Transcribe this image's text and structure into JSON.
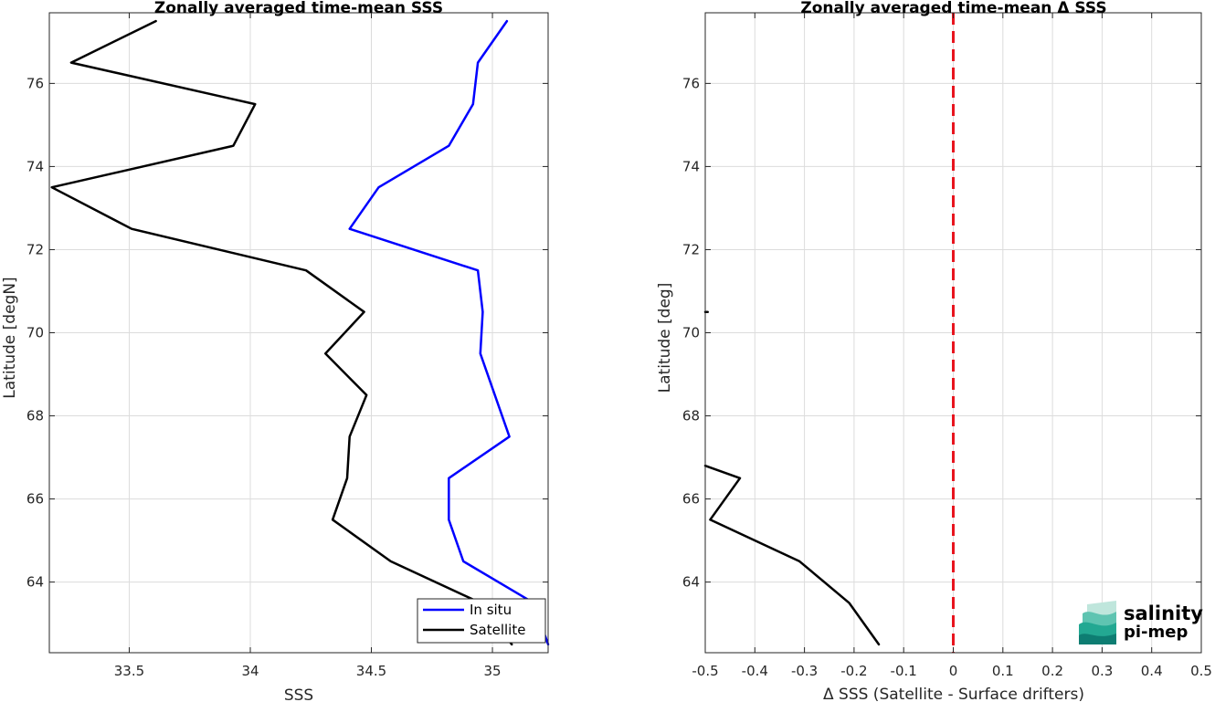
{
  "chart_data": [
    {
      "type": "line",
      "title": "Zonally averaged time-mean SSS",
      "xlabel": "SSS",
      "ylabel": "Latitude [degN]",
      "xlim": [
        33.17,
        35.23
      ],
      "ylim": [
        62.3,
        77.7
      ],
      "xticks": [
        33.5,
        34,
        34.5,
        35
      ],
      "xtick_labels": [
        "33.5",
        "34",
        "34.5",
        "35"
      ],
      "yticks": [
        64,
        66,
        68,
        70,
        72,
        74,
        76
      ],
      "ytick_labels": [
        "64",
        "66",
        "68",
        "70",
        "72",
        "74",
        "76"
      ],
      "grid": true,
      "legend_position": "bottom-right",
      "series": [
        {
          "name": "In situ",
          "color": "#0000ff",
          "x": [
            35.06,
            34.94,
            34.92,
            34.82,
            34.53,
            34.41,
            34.94,
            34.96,
            34.95,
            35.01,
            35.07,
            34.82,
            34.82,
            34.88,
            35.17,
            35.23
          ],
          "y": [
            77.5,
            76.5,
            75.5,
            74.5,
            73.5,
            72.5,
            71.5,
            70.5,
            69.5,
            68.5,
            67.5,
            66.5,
            65.5,
            64.5,
            63.5,
            62.5
          ]
        },
        {
          "name": "Satellite",
          "color": "#000000",
          "x": [
            33.61,
            33.26,
            34.02,
            33.93,
            33.18,
            33.51,
            34.23,
            34.47,
            34.31,
            34.48,
            34.41,
            34.4,
            34.34,
            34.58,
            34.95,
            35.08
          ],
          "y": [
            77.5,
            76.5,
            75.5,
            74.5,
            73.5,
            72.5,
            71.5,
            70.5,
            69.5,
            68.5,
            67.5,
            66.5,
            65.5,
            64.5,
            63.5,
            62.5
          ]
        }
      ]
    },
    {
      "type": "line",
      "title": "Zonally averaged time-mean Δ SSS",
      "xlabel": "Δ SSS (Satellite - Surface drifters)",
      "ylabel": "Latitude [deg]",
      "xlim": [
        -0.5,
        0.5
      ],
      "ylim": [
        62.3,
        77.7
      ],
      "xticks": [
        -0.5,
        -0.4,
        -0.3,
        -0.2,
        -0.1,
        0,
        0.1,
        0.2,
        0.3,
        0.4,
        0.5
      ],
      "xtick_labels": [
        "-0.5",
        "-0.4",
        "-0.3",
        "-0.2",
        "-0.1",
        "0",
        "0.1",
        "0.2",
        "0.3",
        "0.4",
        "0.5"
      ],
      "yticks": [
        64,
        66,
        68,
        70,
        72,
        74,
        76
      ],
      "ytick_labels": [
        "64",
        "66",
        "68",
        "70",
        "72",
        "74",
        "76"
      ],
      "grid": true,
      "reference_line": {
        "x": 0,
        "color": "#e8141e",
        "style": "dashed"
      },
      "series": [
        {
          "color": "#000000",
          "x": [
            -0.5,
            -0.43,
            -0.49,
            -0.31,
            -0.21,
            -0.15
          ],
          "y": [
            66.8,
            66.5,
            65.5,
            64.5,
            63.5,
            62.5
          ]
        },
        {
          "color": "#000000",
          "x": [
            -0.5,
            -0.495
          ],
          "y": [
            70.5,
            70.5
          ]
        }
      ]
    }
  ],
  "logo": {
    "line1": "salinity",
    "line2": "pi-mep",
    "color": "#1aa89a"
  }
}
